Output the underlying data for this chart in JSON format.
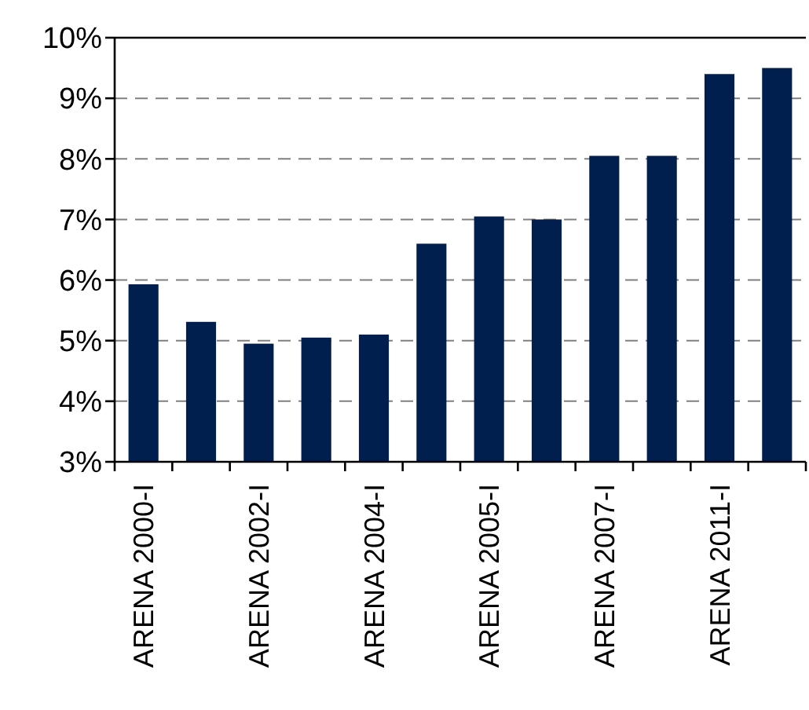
{
  "chart_data": {
    "type": "bar",
    "categories": [
      "ARENA 2000-I",
      null,
      "ARENA 2002-I",
      null,
      "ARENA 2004-I",
      null,
      "ARENA 2005-I",
      null,
      "ARENA 2007-I",
      null,
      "ARENA 2011-I",
      null
    ],
    "values": [
      5.93,
      5.31,
      4.95,
      5.05,
      5.1,
      6.6,
      7.05,
      7.0,
      8.05,
      8.05,
      9.4,
      9.5
    ],
    "color": "#001e4e",
    "ylim": [
      3,
      10
    ],
    "yticks": [
      {
        "value": 3,
        "label": "3%"
      },
      {
        "value": 4,
        "label": "4%"
      },
      {
        "value": 5,
        "label": "5%"
      },
      {
        "value": 6,
        "label": "6%"
      },
      {
        "value": 7,
        "label": "7%"
      },
      {
        "value": 8,
        "label": "8%"
      },
      {
        "value": 9,
        "label": "9%"
      },
      {
        "value": 10,
        "label": "10%"
      }
    ],
    "grid": "y"
  }
}
